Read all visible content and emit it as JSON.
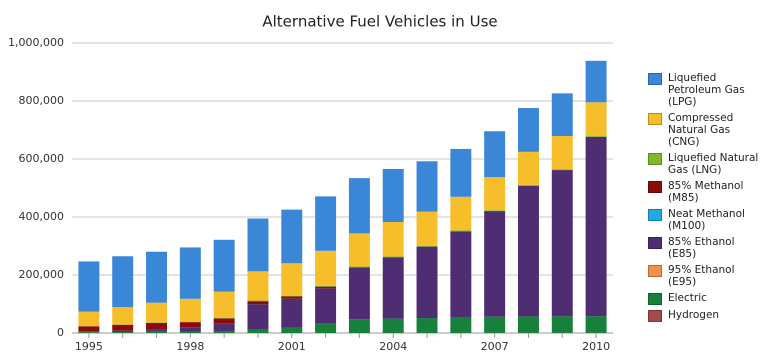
{
  "chart_data": {
    "type": "stacked_bar",
    "title": "Alternative Fuel Vehicles in Use",
    "categories": [
      "1995",
      null,
      null,
      "1998",
      null,
      null,
      "2001",
      null,
      null,
      "2004",
      null,
      null,
      "2007",
      null,
      null,
      "2010"
    ],
    "ylim": [
      0,
      1000000
    ],
    "yticks": [
      0,
      {
        "value": 200000,
        "label": "200,000"
      },
      {
        "value": 400000,
        "label": "400,000"
      },
      {
        "value": 600000,
        "label": "600,000"
      },
      {
        "value": 800000,
        "label": "800,000"
      },
      {
        "value": 1000000,
        "label": "1,000,000"
      }
    ],
    "grid": true,
    "legend": "right",
    "series": [
      {
        "name": "Liquefied Petroleum Gas (LPG)",
        "color": "#3a87d8",
        "values": [
          172806,
          175585,
          175679,
          177183,
          178610,
          181994,
          185053,
          187680,
          190438,
          182864,
          173795,
          164846,
          158254,
          151049,
          147030,
          143037
        ]
      },
      {
        "name": "Compressed Natural Gas (CNG)",
        "color": "#f5be2a",
        "values": [
          50218,
          60144,
          68571,
          78782,
          91267,
          100750,
          111851,
          120839,
          114406,
          118532,
          117699,
          116131,
          114270,
          113973,
          114270,
          115863
        ]
      },
      {
        "name": "Liquefied Natural Gas (LNG)",
        "color": "#7cba2a",
        "values": [
          603,
          663,
          1172,
          1681,
          1572,
          2090,
          2576,
          2708,
          2640,
          2717,
          2748,
          2798,
          2781,
          3101,
          3176,
          3354
        ]
      },
      {
        "name": "85% Methanol (M85)",
        "color": "#8b0b0b",
        "values": [
          18319,
          20265,
          21040,
          19154,
          18173,
          10426,
          7827,
          5873,
          0,
          0,
          0,
          0,
          0,
          0,
          0,
          0
        ]
      },
      {
        "name": "Neat Methanol (M100)",
        "color": "#22a8e8",
        "values": [
          386,
          172,
          172,
          200,
          198,
          0,
          0,
          0,
          0,
          0,
          0,
          0,
          0,
          0,
          0,
          0
        ]
      },
      {
        "name": "85% Ethanol (E85)",
        "color": "#4f2d73",
        "values": [
          1527,
          4536,
          9130,
          12788,
          24604,
          87570,
          100303,
          120951,
          179090,
          211800,
          246363,
          297099,
          364384,
          450327,
          504297,
          618505
        ]
      },
      {
        "name": "95% Ethanol (E95)",
        "color": "#f0904a",
        "values": [
          33,
          33,
          14,
          14,
          14,
          4,
          0,
          0,
          0,
          0,
          0,
          0,
          0,
          0,
          0,
          0
        ]
      },
      {
        "name": "Electric",
        "color": "#17803a",
        "values": [
          2860,
          3280,
          4453,
          5243,
          6964,
          11830,
          17847,
          33047,
          47485,
          49536,
          51398,
          53526,
          55730,
          56901,
          57185,
          57462
        ]
      },
      {
        "name": "Hydrogen",
        "color": "#a44a4a",
        "values": [
          0,
          0,
          0,
          0,
          0,
          0,
          0,
          0,
          9,
          119,
          159,
          223,
          313,
          376,
          357,
          421
        ]
      }
    ]
  }
}
